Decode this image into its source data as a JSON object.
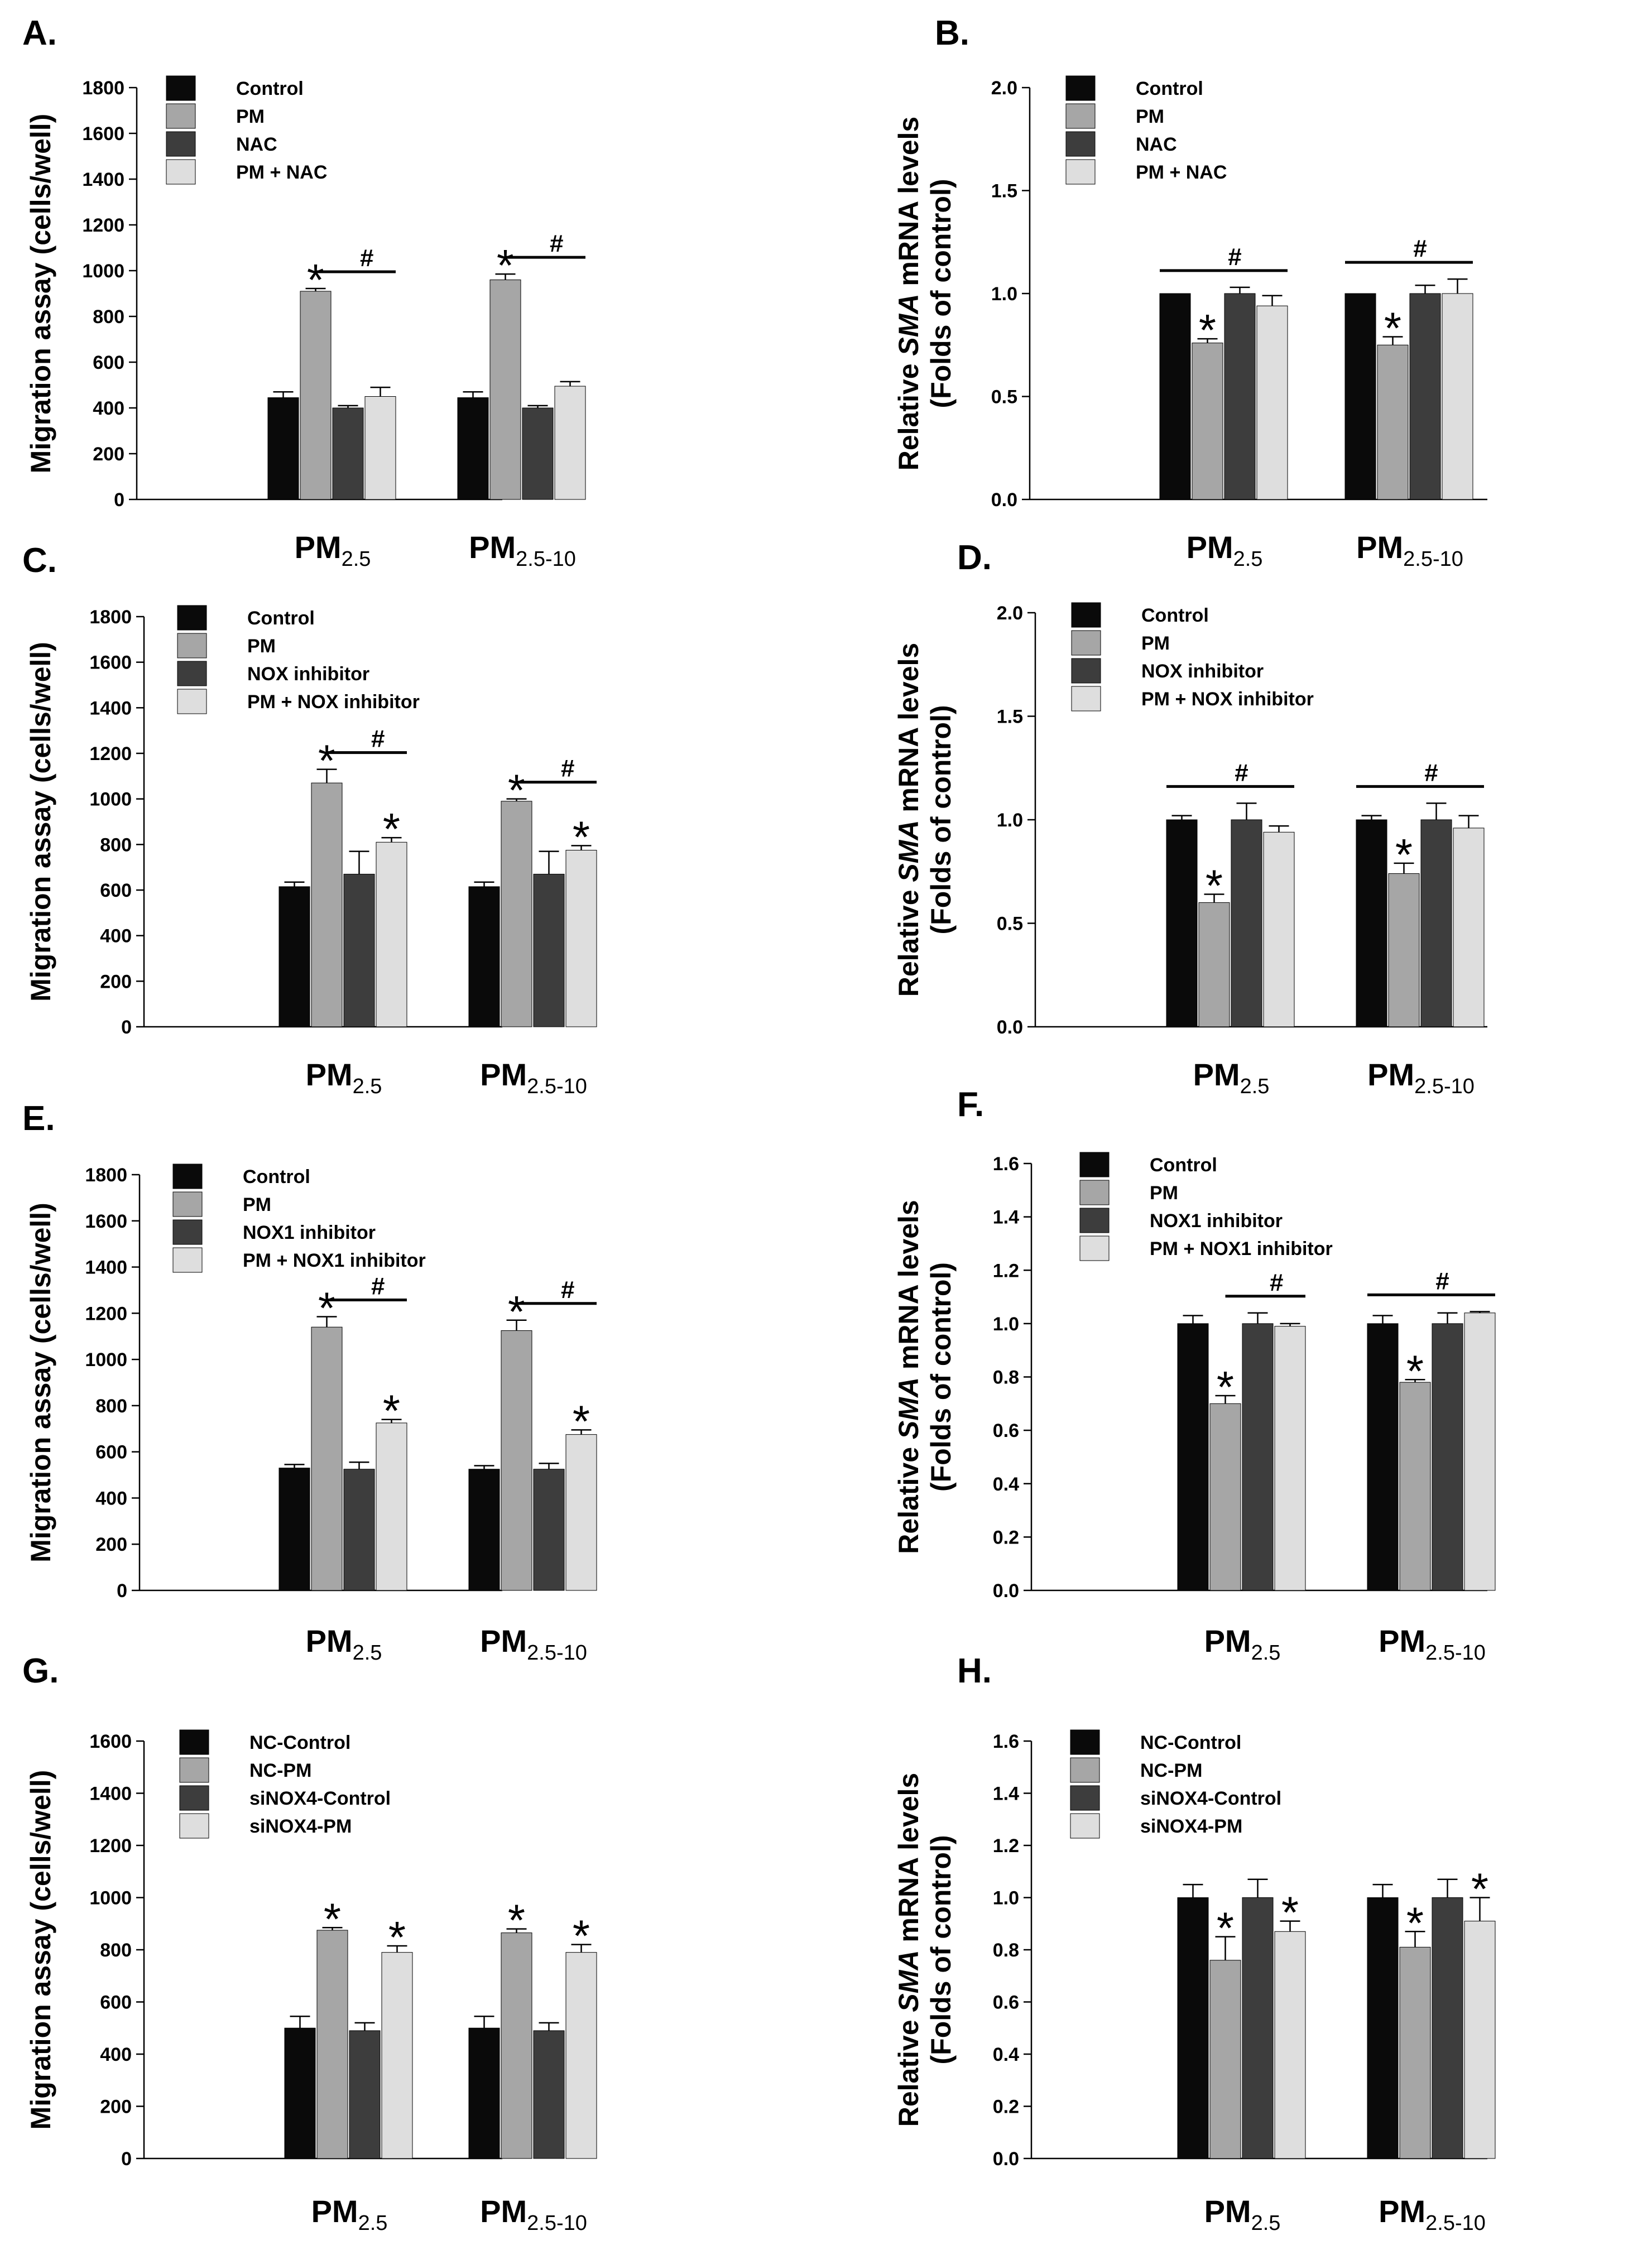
{
  "palette": [
    "#0a0a0a",
    "#a6a6a6",
    "#3d3d3d",
    "#dedede"
  ],
  "chart_data": [
    {
      "panel": "A.",
      "type": "bar",
      "ylabel": "Migration assay (cells/well)",
      "ylim": [
        0,
        1800
      ],
      "ticks": [
        "0",
        "200",
        "400",
        "600",
        "800",
        "1000",
        "1200",
        "1400",
        "1600",
        "1800"
      ],
      "categories": [
        {
          "main": "PM",
          "sub": "2.5"
        },
        {
          "main": "PM",
          "sub": "2.5-10"
        }
      ],
      "series": [
        {
          "name": "Control",
          "values": [
            445,
            445
          ],
          "errors": [
            25,
            25
          ]
        },
        {
          "name": "PM",
          "values": [
            910,
            960
          ],
          "errors": [
            12,
            25
          ]
        },
        {
          "name": "NAC",
          "values": [
            400,
            400
          ],
          "errors": [
            10,
            10
          ]
        },
        {
          "name": "PM + NAC",
          "values": [
            450,
            495
          ],
          "errors": [
            40,
            20
          ]
        }
      ],
      "stars": [
        [
          1,
          0
        ],
        [
          1,
          1
        ]
      ],
      "hash_lines": [
        {
          "cat": 0,
          "from": 1,
          "to": 3
        },
        {
          "cat": 1,
          "from": 1,
          "to": 3
        }
      ],
      "star_symbol": "*",
      "hash_symbol": "#"
    },
    {
      "panel": "B.",
      "type": "bar",
      "ylabel_parts": [
        "Relative ",
        "SMA",
        " mRNA levels"
      ],
      "ylabel2": "(Folds of control)",
      "ylim": [
        0,
        2.0
      ],
      "ticks": [
        "0.0",
        "0.5",
        "1.0",
        "1.5",
        "2.0"
      ],
      "categories": [
        {
          "main": "PM",
          "sub": "2.5"
        },
        {
          "main": "PM",
          "sub": "2.5-10"
        }
      ],
      "series": [
        {
          "name": "Control",
          "values": [
            1.0,
            1.0
          ],
          "errors": [
            0,
            0
          ]
        },
        {
          "name": "PM",
          "values": [
            0.76,
            0.75
          ],
          "errors": [
            0.02,
            0.04
          ]
        },
        {
          "name": "NAC",
          "values": [
            1.0,
            1.0
          ],
          "errors": [
            0.03,
            0.04
          ]
        },
        {
          "name": "PM + NAC",
          "values": [
            0.94,
            1.0
          ],
          "errors": [
            0.05,
            0.07
          ]
        }
      ],
      "stars": [
        [
          1,
          0
        ],
        [
          1,
          1
        ]
      ],
      "hash_lines": [
        {
          "cat": 0,
          "from": 0,
          "to": 3
        },
        {
          "cat": 1,
          "from": 0,
          "to": 3
        }
      ],
      "star_symbol": "*",
      "hash_symbol": "#"
    },
    {
      "panel": "C.",
      "type": "bar",
      "ylabel": "Migration assay (cells/well)",
      "ylim": [
        0,
        1800
      ],
      "ticks": [
        "0",
        "200",
        "400",
        "600",
        "800",
        "1000",
        "1200",
        "1400",
        "1600",
        "1800"
      ],
      "categories": [
        {
          "main": "PM",
          "sub": "2.5"
        },
        {
          "main": "PM",
          "sub": "2.5-10"
        }
      ],
      "series": [
        {
          "name": "Control",
          "values": [
            615,
            615
          ],
          "errors": [
            20,
            20
          ]
        },
        {
          "name": "PM",
          "values": [
            1070,
            990
          ],
          "errors": [
            60,
            10
          ]
        },
        {
          "name": "NOX inhibitor",
          "values": [
            670,
            670
          ],
          "errors": [
            100,
            100
          ]
        },
        {
          "name": "PM + NOX inhibitor",
          "values": [
            810,
            775
          ],
          "errors": [
            20,
            20
          ]
        }
      ],
      "stars": [
        [
          1,
          0
        ],
        [
          3,
          0
        ],
        [
          1,
          1
        ],
        [
          3,
          1
        ]
      ],
      "hash_lines": [
        {
          "cat": 0,
          "from": 1,
          "to": 3
        },
        {
          "cat": 1,
          "from": 1,
          "to": 3
        }
      ],
      "star_symbol": "*",
      "hash_symbol": "#"
    },
    {
      "panel": "D.",
      "type": "bar",
      "ylabel_parts": [
        "Relative ",
        "SMA",
        " mRNA levels"
      ],
      "ylabel2": "(Folds of control)",
      "ylim": [
        0,
        2.0
      ],
      "ticks": [
        "0.0",
        "0.5",
        "1.0",
        "1.5",
        "2.0"
      ],
      "categories": [
        {
          "main": "PM",
          "sub": "2.5"
        },
        {
          "main": "PM",
          "sub": "2.5-10"
        }
      ],
      "series": [
        {
          "name": "Control",
          "values": [
            1.0,
            1.0
          ],
          "errors": [
            0.02,
            0.02
          ]
        },
        {
          "name": "PM",
          "values": [
            0.6,
            0.74
          ],
          "errors": [
            0.04,
            0.05
          ]
        },
        {
          "name": "NOX inhibitor",
          "values": [
            1.0,
            1.0
          ],
          "errors": [
            0.08,
            0.08
          ]
        },
        {
          "name": "PM + NOX inhibitor",
          "values": [
            0.94,
            0.96
          ],
          "errors": [
            0.03,
            0.06
          ]
        }
      ],
      "stars": [
        [
          1,
          0
        ],
        [
          1,
          1
        ]
      ],
      "hash_lines": [
        {
          "cat": 0,
          "from": 0,
          "to": 3
        },
        {
          "cat": 1,
          "from": 0,
          "to": 3
        }
      ],
      "star_symbol": "*",
      "hash_symbol": "#"
    },
    {
      "panel": "E.",
      "type": "bar",
      "ylabel": "Migration assay (cells/well)",
      "ylim": [
        0,
        1800
      ],
      "ticks": [
        "0",
        "200",
        "400",
        "600",
        "800",
        "1000",
        "1200",
        "1400",
        "1600",
        "1800"
      ],
      "categories": [
        {
          "main": "PM",
          "sub": "2.5"
        },
        {
          "main": "PM",
          "sub": "2.5-10"
        }
      ],
      "series": [
        {
          "name": "Control",
          "values": [
            530,
            525
          ],
          "errors": [
            15,
            15
          ]
        },
        {
          "name": "PM",
          "values": [
            1140,
            1125
          ],
          "errors": [
            45,
            45
          ]
        },
        {
          "name": "NOX1 inhibitor",
          "values": [
            525,
            525
          ],
          "errors": [
            30,
            25
          ]
        },
        {
          "name": "PM + NOX1 inhibitor",
          "values": [
            725,
            675
          ],
          "errors": [
            15,
            20
          ]
        }
      ],
      "stars": [
        [
          1,
          0
        ],
        [
          3,
          0
        ],
        [
          1,
          1
        ],
        [
          3,
          1
        ]
      ],
      "hash_lines": [
        {
          "cat": 0,
          "from": 1,
          "to": 3
        },
        {
          "cat": 1,
          "from": 1,
          "to": 3
        }
      ],
      "star_symbol": "*",
      "hash_symbol": "#"
    },
    {
      "panel": "F.",
      "type": "bar",
      "ylabel_parts": [
        "Relative ",
        "SMA",
        " mRNA levels"
      ],
      "ylabel2": "(Folds of control)",
      "ylim": [
        0,
        1.6
      ],
      "ticks": [
        "0.0",
        "0.2",
        "0.4",
        "0.6",
        "0.8",
        "1.0",
        "1.2",
        "1.4",
        "1.6"
      ],
      "categories": [
        {
          "main": "PM",
          "sub": "2.5"
        },
        {
          "main": "PM",
          "sub": "2.5-10"
        }
      ],
      "series": [
        {
          "name": "Control",
          "values": [
            1.0,
            1.0
          ],
          "errors": [
            0.03,
            0.03
          ]
        },
        {
          "name": "PM",
          "values": [
            0.7,
            0.78
          ],
          "errors": [
            0.03,
            0.01
          ]
        },
        {
          "name": "NOX1 inhibitor",
          "values": [
            1.0,
            1.0
          ],
          "errors": [
            0.04,
            0.04
          ]
        },
        {
          "name": "PM + NOX1 inhibitor",
          "values": [
            0.99,
            1.04
          ],
          "errors": [
            0.01,
            0.005
          ]
        }
      ],
      "stars": [
        [
          1,
          0
        ],
        [
          1,
          1
        ]
      ],
      "hash_lines": [
        {
          "cat": 0,
          "from": 1,
          "to": 3
        },
        {
          "cat": 1,
          "from": 0,
          "to": 3
        }
      ],
      "star_symbol": "*",
      "hash_symbol": "#"
    },
    {
      "panel": "G.",
      "type": "bar",
      "ylabel": "Migration assay (cells/well)",
      "ylim": [
        0,
        1600
      ],
      "ticks": [
        "0",
        "200",
        "400",
        "600",
        "800",
        "1000",
        "1200",
        "1400",
        "1600"
      ],
      "categories": [
        {
          "main": "PM",
          "sub": "2.5"
        },
        {
          "main": "PM",
          "sub": "2.5-10"
        }
      ],
      "series": [
        {
          "name": "NC-Control",
          "values": [
            500,
            500
          ],
          "errors": [
            45,
            45
          ]
        },
        {
          "name": "NC-PM",
          "values": [
            875,
            865
          ],
          "errors": [
            10,
            15
          ]
        },
        {
          "name": "siNOX4-Control",
          "values": [
            490,
            490
          ],
          "errors": [
            30,
            30
          ]
        },
        {
          "name": "siNOX4-PM",
          "values": [
            790,
            790
          ],
          "errors": [
            25,
            30
          ]
        }
      ],
      "stars": [
        [
          1,
          0
        ],
        [
          3,
          0
        ],
        [
          1,
          1
        ],
        [
          3,
          1
        ]
      ],
      "hash_lines": [],
      "star_symbol": "*",
      "hash_symbol": "#"
    },
    {
      "panel": "H.",
      "type": "bar",
      "ylabel_parts": [
        "Relative ",
        "SMA",
        " mRNA levels"
      ],
      "ylabel2": "(Folds of control)",
      "ylim": [
        0,
        1.6
      ],
      "ticks": [
        "0.0",
        "0.2",
        "0.4",
        "0.6",
        "0.8",
        "1.0",
        "1.2",
        "1.4",
        "1.6"
      ],
      "categories": [
        {
          "main": "PM",
          "sub": "2.5"
        },
        {
          "main": "PM",
          "sub": "2.5-10"
        }
      ],
      "series": [
        {
          "name": "NC-Control",
          "values": [
            1.0,
            1.0
          ],
          "errors": [
            0.05,
            0.05
          ]
        },
        {
          "name": "NC-PM",
          "values": [
            0.76,
            0.81
          ],
          "errors": [
            0.09,
            0.06
          ]
        },
        {
          "name": "siNOX4-Control",
          "values": [
            1.0,
            1.0
          ],
          "errors": [
            0.07,
            0.07
          ]
        },
        {
          "name": "siNOX4-PM",
          "values": [
            0.87,
            0.91
          ],
          "errors": [
            0.04,
            0.09
          ]
        }
      ],
      "stars": [
        [
          1,
          0
        ],
        [
          3,
          0
        ],
        [
          1,
          1
        ],
        [
          3,
          1
        ]
      ],
      "hash_lines": [],
      "star_symbol": "*",
      "hash_symbol": "#"
    }
  ]
}
